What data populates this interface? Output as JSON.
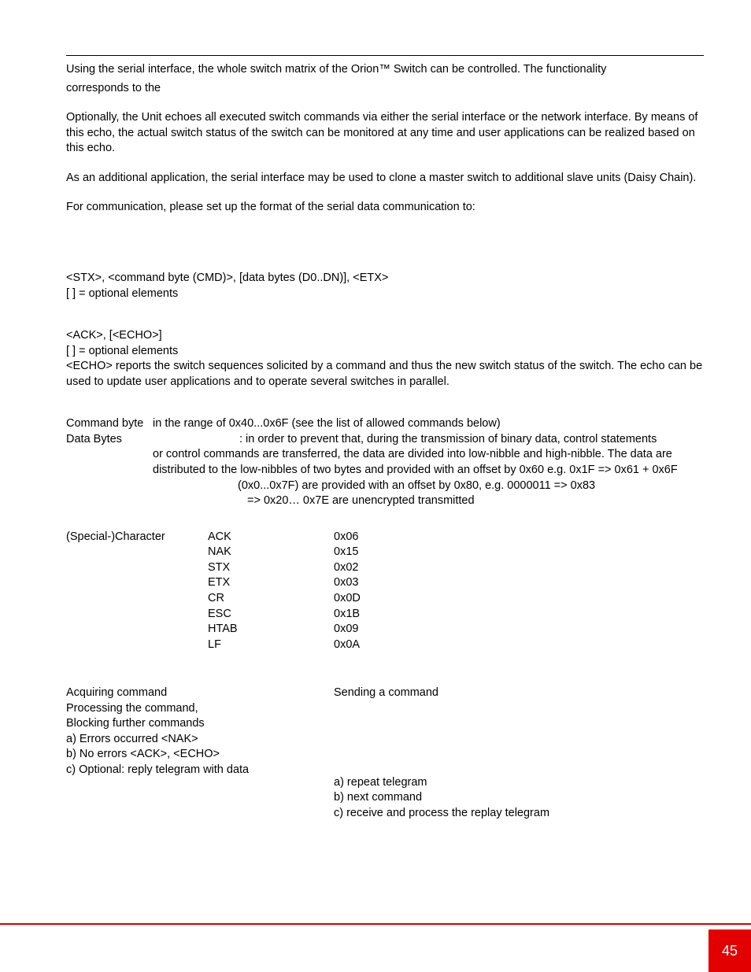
{
  "colors": {
    "text": "#000000",
    "background": "#ffffff",
    "rule_top": "#000000",
    "rule_bottom": "#d90000",
    "page_badge_bg": "#e30000",
    "page_badge_fg": "#ffffff"
  },
  "typography": {
    "font_family": "Arial, Helvetica, sans-serif",
    "body_fontsize_pt": 11,
    "page_num_fontsize_pt": 14
  },
  "intro": {
    "p1a": "Using the serial interface, the whole switch matrix of the Orion™ Switch can be controlled. The functionality",
    "p1b": "corresponds to the",
    "p2": "Optionally, the Unit echoes all executed switch commands via either the serial interface or the network interface. By means of this echo, the actual switch status of the switch can be monitored at any time and user applications can be realized based on this echo.",
    "p3": "As an additional application, the serial interface may be used to clone a master switch to additional slave units (Daisy Chain).",
    "p4": "For communication, please set up the format of the serial data communication to:"
  },
  "tx": {
    "l1": "<STX>, <command byte (CMD)>, [data bytes (D0..DN)], <ETX>",
    "l2": "[ ] = optional elements"
  },
  "rx": {
    "l1": "<ACK>, [<ECHO>]",
    "l2": "[ ] = optional elements",
    "l3": "<ECHO> reports the switch sequences solicited by a command and thus the new switch status of the switch. The echo can be used to update user applications and to operate several switches in parallel."
  },
  "defs": {
    "cmd_label": "Command byte",
    "cmd_body": "in the range of 0x40...0x6F (see the list of allowed commands below)",
    "data_label": "Data Bytes",
    "data_body_lead": ": in order to prevent that, during the transmission of binary data, control statements",
    "data_body_rest": "or control commands are transferred, the data are divided into low-nibble and high-nibble. The data are distributed to the low-nibbles of two bytes and provided with an offset by 0x60 e.g. 0x1F => 0x61 + 0x6F",
    "ascii_l1": "(0x0...0x7F) are provided with an offset by 0x80, e.g. 0000011 => 0x83",
    "ascii_l2": "=> 0x20… 0x7E are unencrypted transmitted"
  },
  "chars_label": "(Special-)Character",
  "chars": [
    {
      "name": "ACK",
      "val": "0x06"
    },
    {
      "name": "NAK",
      "val": "0x15"
    },
    {
      "name": "STX",
      "val": "0x02"
    },
    {
      "name": "ETX",
      "val": "0x03"
    },
    {
      "name": "CR",
      "val": "0x0D"
    },
    {
      "name": "ESC",
      "val": "0x1B"
    },
    {
      "name": "HTAB",
      "val": "0x09"
    },
    {
      "name": "LF",
      "val": "0x0A"
    }
  ],
  "seq": {
    "left": [
      "Acquiring command",
      "Processing the command,",
      "Blocking further commands",
      "a) Errors occurred <NAK>",
      "b) No errors <ACK>, <ECHO>",
      "c) Optional: reply telegram with data"
    ],
    "right_top": "Sending a command",
    "right": [
      "a) repeat telegram",
      "b) next command",
      "c) receive and process the replay telegram"
    ]
  },
  "page_number": "45"
}
